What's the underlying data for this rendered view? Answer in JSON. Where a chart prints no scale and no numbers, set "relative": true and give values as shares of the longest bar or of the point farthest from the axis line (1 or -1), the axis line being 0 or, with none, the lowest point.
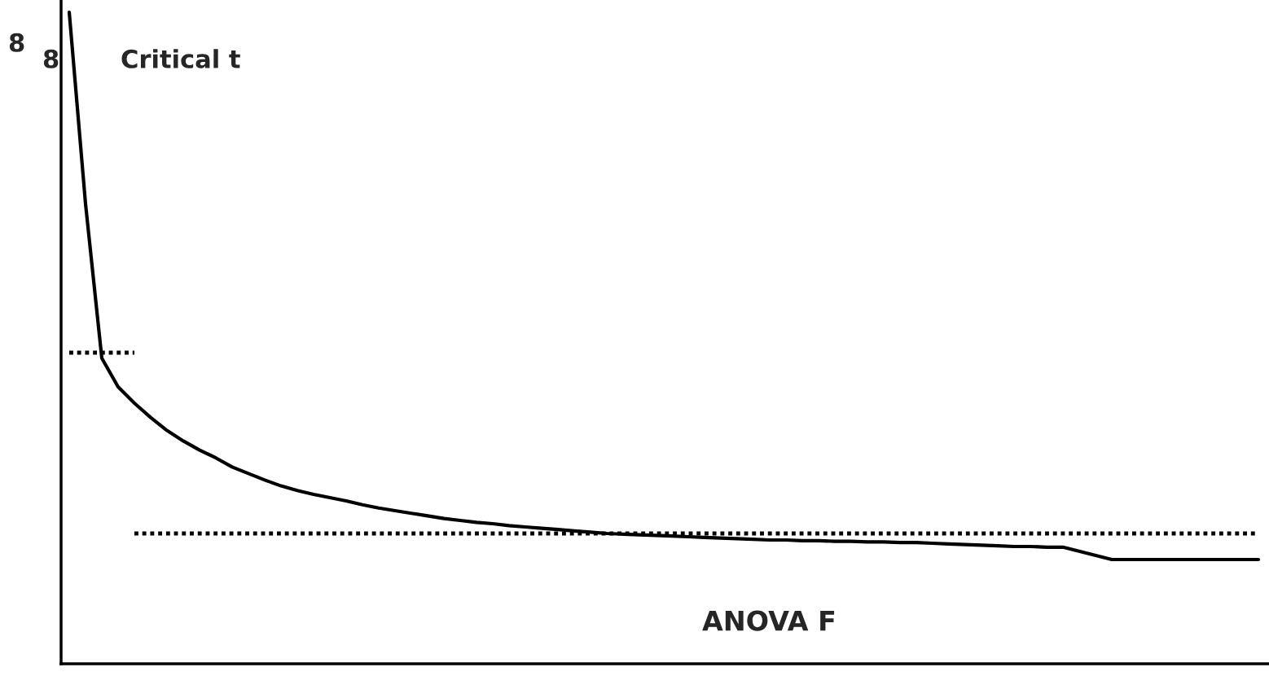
{
  "chart_data": {
    "type": "line",
    "relative": true,
    "categories": [
      null,
      null,
      null,
      null,
      null,
      null,
      null,
      null,
      null,
      null,
      null,
      null,
      null,
      null,
      null,
      null,
      null,
      null,
      null,
      null,
      null,
      null,
      null,
      null,
      null,
      null,
      null,
      null,
      null,
      null,
      null,
      null,
      null,
      null,
      null,
      null,
      null,
      null,
      null,
      null,
      null,
      null,
      null,
      null,
      null,
      null,
      null,
      null,
      null,
      null,
      null,
      null,
      null,
      null,
      null,
      null,
      null,
      null,
      null,
      null,
      null,
      null,
      null,
      null,
      null,
      null,
      null,
      null,
      null,
      null,
      null,
      null,
      null,
      null
    ],
    "series": [
      {
        "color": "#000000",
        "line_style": "solid",
        "values": [
          1.0,
          0.706,
          0.469,
          0.425,
          0.4,
          0.378,
          0.358,
          0.342,
          0.328,
          0.316,
          0.302,
          0.292,
          0.282,
          0.273,
          0.266,
          0.26,
          0.255,
          0.25,
          0.244,
          0.239,
          0.235,
          0.231,
          0.227,
          0.223,
          0.22,
          0.217,
          0.215,
          0.212,
          0.21,
          0.208,
          0.206,
          0.204,
          0.202,
          0.2,
          0.199,
          0.198,
          0.197,
          0.196,
          0.195,
          0.194,
          0.193,
          0.192,
          0.191,
          0.19,
          0.19,
          0.189,
          0.189,
          0.188,
          0.188,
          0.187,
          0.187,
          0.186,
          0.186,
          0.185,
          0.184,
          0.183,
          0.182,
          0.181,
          0.18,
          0.18,
          0.179,
          0.179,
          null,
          null,
          0.16,
          0.16,
          0.16,
          0.16,
          0.16,
          0.16,
          0.16,
          0.16,
          0.16,
          0.16
        ]
      },
      {
        "color": "#000000",
        "line_style": "dotted",
        "values": [
          0.4775,
          0.4775,
          0.4775,
          0.4775,
          0.4775,
          null,
          null,
          null,
          null,
          null,
          null,
          null,
          null,
          null,
          null,
          null,
          null,
          null,
          null,
          null,
          null,
          null,
          null,
          null,
          null,
          null,
          null,
          null,
          null,
          null,
          null,
          null,
          null,
          null,
          null,
          null,
          null,
          null,
          null,
          null,
          null,
          null,
          null,
          null,
          null,
          null,
          null,
          null,
          null,
          null,
          null,
          null,
          null,
          null,
          null,
          null,
          null,
          null,
          null,
          null,
          null,
          null,
          null,
          null,
          null,
          null,
          null,
          null,
          null,
          null,
          null,
          null,
          null,
          null
        ]
      },
      {
        "color": "#000000",
        "line_style": "dotted",
        "values": [
          null,
          null,
          null,
          null,
          0.2,
          0.2,
          0.2,
          0.2,
          0.2,
          0.2,
          0.2,
          0.2,
          0.2,
          0.2,
          0.2,
          0.2,
          0.2,
          0.2,
          0.2,
          0.2,
          0.2,
          0.2,
          0.2,
          0.2,
          0.2,
          0.2,
          0.2,
          0.2,
          0.2,
          0.2,
          0.2,
          0.2,
          0.2,
          0.2,
          0.2,
          0.2,
          0.2,
          0.2,
          0.2,
          0.2,
          0.2,
          0.2,
          0.2,
          0.2,
          0.2,
          0.2,
          0.2,
          0.2,
          0.2,
          0.2,
          0.2,
          0.2,
          0.2,
          0.2,
          0.2,
          0.2,
          0.2,
          0.2,
          0.2,
          0.2,
          0.2,
          0.2,
          0.2,
          0.2,
          0.2,
          0.2,
          0.2,
          0.2,
          0.2,
          0.2,
          0.2,
          0.2,
          0.2,
          0.2
        ]
      }
    ],
    "annotations": [
      "8",
      "8",
      "Critical t",
      "ANOVA F"
    ],
    "legend": false
  }
}
